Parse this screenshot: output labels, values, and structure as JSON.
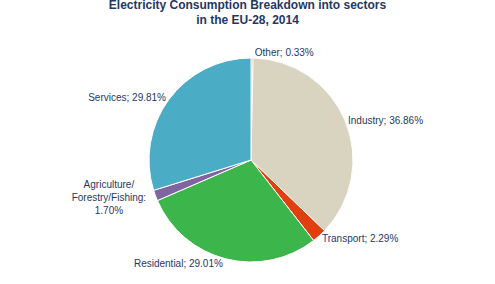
{
  "chart_data": {
    "type": "pie",
    "title": "Electricity Consumption Breakdown into sectors\nin the EU-28, 2014",
    "values": [
      0.33,
      36.86,
      2.29,
      29.01,
      1.7,
      29.81
    ],
    "value_labels": [
      "Other; 0.33%",
      "Industry; 36.86%",
      "Transport; 2.29%",
      "Residential; 29.01%",
      "Agriculture/\nForestry/Fishing:\n1.70%",
      "Services; 29.81%"
    ],
    "colors": [
      "#D4A843",
      "#D9D4C0",
      "#E04010",
      "#3CB54A",
      "#8064A2",
      "#4BACC6"
    ]
  }
}
